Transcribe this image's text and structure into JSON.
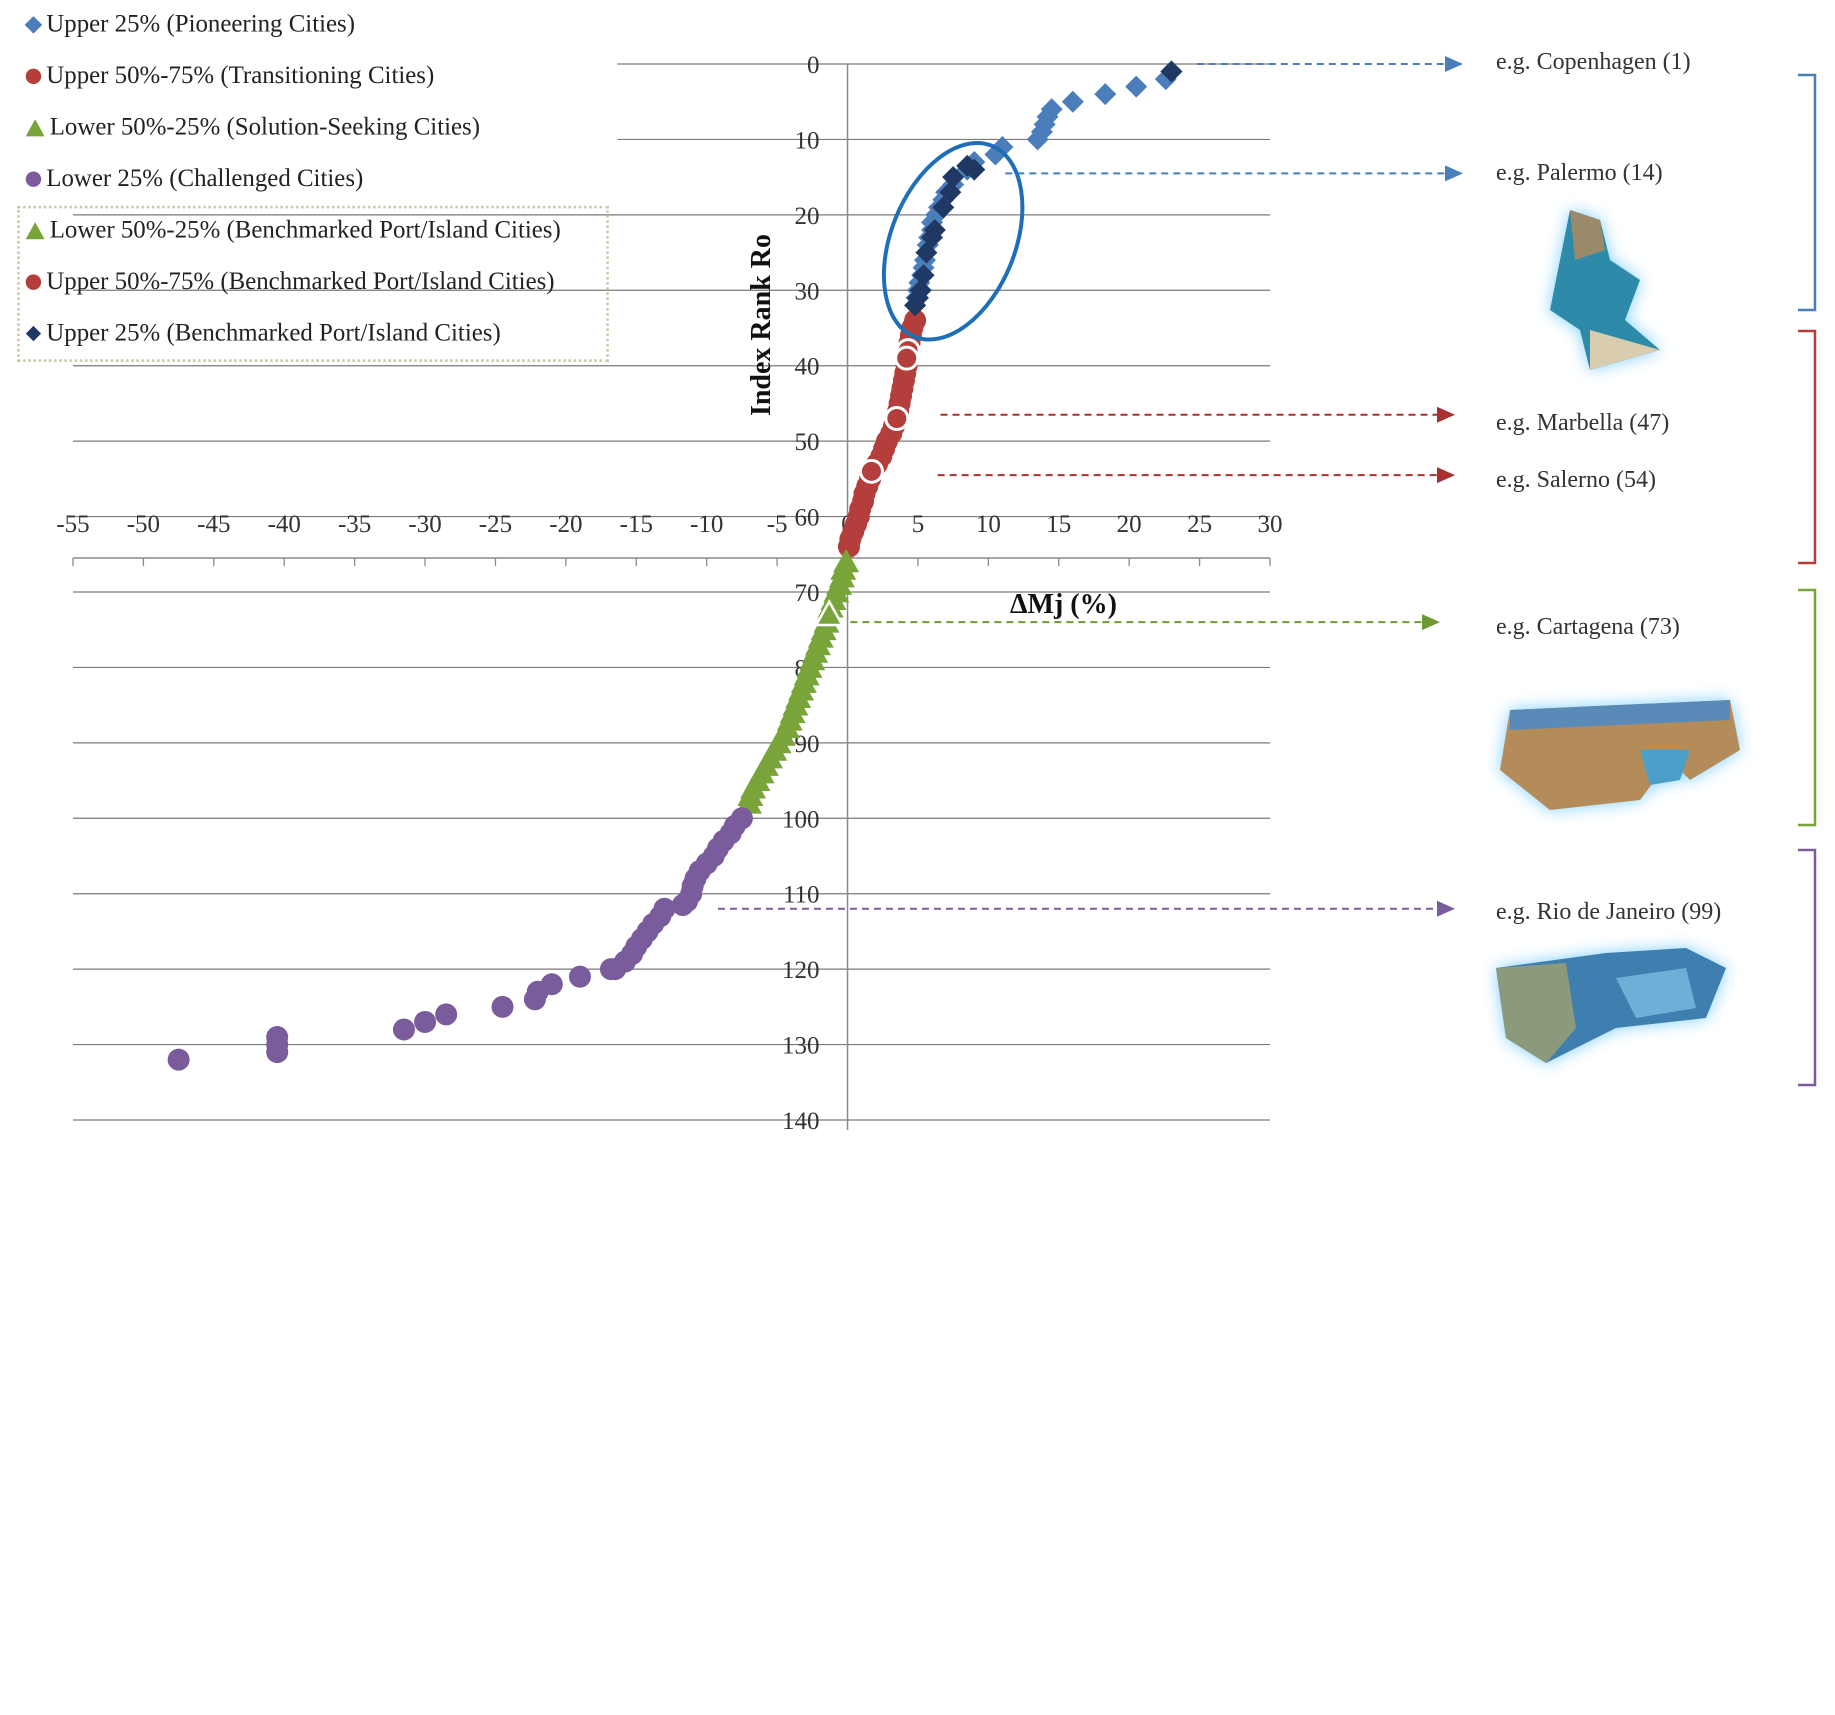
{
  "chart_data": {
    "type": "scatter",
    "xlabel": "ΔMj (%)",
    "ylabel": "Index Rank Ro",
    "xlim": [
      -55,
      30
    ],
    "ylim": [
      0,
      140
    ],
    "y_inverted": true,
    "grid": "horizontal",
    "x_ticks": [
      "-55",
      "-50",
      "-45",
      "-40",
      "-35",
      "-30",
      "-25",
      "-20",
      "-15",
      "-10",
      "-5",
      "0",
      "5",
      "10",
      "15",
      "20",
      "25",
      "30"
    ],
    "y_ticks": [
      "0",
      "10",
      "20",
      "30",
      "40",
      "50",
      "60",
      "70",
      "80",
      "90",
      "100",
      "110",
      "120",
      "130",
      "140"
    ],
    "legend_position": "top-left",
    "series": [
      {
        "name": "Upper 25% (Pioneering Cities)",
        "marker": "diamond",
        "color": "#4a7ebb",
        "points": [
          [
            23,
            1
          ],
          [
            22.6,
            2
          ],
          [
            20.5,
            3
          ],
          [
            18.3,
            4
          ],
          [
            16,
            5
          ],
          [
            14.5,
            6
          ],
          [
            14.2,
            7
          ],
          [
            14,
            8
          ],
          [
            13.8,
            9
          ],
          [
            13.5,
            10
          ],
          [
            11,
            11
          ],
          [
            10.5,
            12
          ],
          [
            9,
            13
          ],
          [
            8.5,
            14
          ],
          [
            7.5,
            16
          ],
          [
            7,
            17
          ],
          [
            6.8,
            18
          ],
          [
            6.5,
            19
          ],
          [
            6.3,
            20
          ],
          [
            6,
            21
          ],
          [
            6,
            22
          ],
          [
            5.8,
            23
          ],
          [
            5.7,
            24
          ],
          [
            5.5,
            26
          ],
          [
            5.4,
            27
          ],
          [
            5.3,
            28
          ],
          [
            5.1,
            29
          ],
          [
            5,
            30
          ],
          [
            4.9,
            31
          ],
          [
            4.8,
            32
          ]
        ]
      },
      {
        "name": "Upper 50%-75% (Transitioning Cities)",
        "marker": "circle",
        "color": "#b33e3c",
        "points": [
          [
            4.8,
            34
          ],
          [
            4.6,
            35
          ],
          [
            4.5,
            36
          ],
          [
            4.4,
            37
          ],
          [
            4.3,
            39
          ],
          [
            4.2,
            40
          ],
          [
            4.1,
            41
          ],
          [
            4.0,
            42
          ],
          [
            3.9,
            43
          ],
          [
            3.8,
            44
          ],
          [
            3.7,
            45
          ],
          [
            3.6,
            46
          ],
          [
            3.5,
            47
          ],
          [
            3.3,
            48
          ],
          [
            3.1,
            49
          ],
          [
            2.8,
            50
          ],
          [
            2.6,
            51
          ],
          [
            2.4,
            52
          ],
          [
            2.1,
            53
          ],
          [
            1.8,
            54
          ],
          [
            1.6,
            55
          ],
          [
            1.4,
            56
          ],
          [
            1.2,
            57
          ],
          [
            1.1,
            58
          ],
          [
            0.9,
            59
          ],
          [
            0.8,
            60
          ],
          [
            0.6,
            61
          ],
          [
            0.4,
            62
          ],
          [
            0.2,
            63
          ],
          [
            0.1,
            64
          ]
        ]
      },
      {
        "name": "Lower 50%-25% (Solution-Seeking Cities)",
        "marker": "triangle",
        "color": "#78a43a",
        "points": [
          [
            -0.1,
            66
          ],
          [
            -0.3,
            67
          ],
          [
            -0.4,
            68
          ],
          [
            -0.6,
            69
          ],
          [
            -0.8,
            70
          ],
          [
            -1,
            71
          ],
          [
            -1.2,
            72
          ],
          [
            -1.3,
            73
          ],
          [
            -1.5,
            74
          ],
          [
            -1.7,
            75
          ],
          [
            -1.9,
            76
          ],
          [
            -2.1,
            77
          ],
          [
            -2.3,
            78
          ],
          [
            -2.5,
            79
          ],
          [
            -2.7,
            80
          ],
          [
            -2.9,
            81
          ],
          [
            -3.1,
            82
          ],
          [
            -3.3,
            83
          ],
          [
            -3.5,
            84
          ],
          [
            -3.7,
            85
          ],
          [
            -3.9,
            86
          ],
          [
            -4.1,
            87
          ],
          [
            -4.3,
            88
          ],
          [
            -4.6,
            89
          ],
          [
            -4.9,
            90
          ],
          [
            -5.2,
            91
          ],
          [
            -5.5,
            92
          ],
          [
            -5.8,
            93
          ],
          [
            -6.1,
            94
          ],
          [
            -6.4,
            95
          ],
          [
            -6.7,
            96
          ],
          [
            -6.9,
            97
          ],
          [
            -7.0,
            98
          ]
        ]
      },
      {
        "name": "Lower 25% (Challenged Cities)",
        "marker": "circle",
        "color": "#7a5c9c",
        "points": [
          [
            -7.5,
            100
          ],
          [
            -8,
            101
          ],
          [
            -8.3,
            102
          ],
          [
            -8.8,
            103
          ],
          [
            -9.2,
            104
          ],
          [
            -9.5,
            105
          ],
          [
            -10,
            106
          ],
          [
            -10.5,
            107
          ],
          [
            -10.8,
            108
          ],
          [
            -11,
            109
          ],
          [
            -11.1,
            110
          ],
          [
            -11.4,
            111
          ],
          [
            -11.7,
            111.5
          ],
          [
            -13,
            112
          ],
          [
            -13.3,
            113
          ],
          [
            -13.8,
            114
          ],
          [
            -14.2,
            115
          ],
          [
            -14.6,
            116
          ],
          [
            -15,
            117
          ],
          [
            -15.3,
            118
          ],
          [
            -15.8,
            119
          ],
          [
            -16.5,
            120
          ],
          [
            -16.8,
            120
          ],
          [
            -19,
            121
          ],
          [
            -21,
            122
          ],
          [
            -22,
            123
          ],
          [
            -22.2,
            124
          ],
          [
            -24.5,
            125
          ],
          [
            -28.5,
            126
          ],
          [
            -30,
            127
          ],
          [
            -31.5,
            128
          ],
          [
            -40.5,
            129
          ],
          [
            -40.5,
            130
          ],
          [
            -40.5,
            131
          ],
          [
            -47.5,
            132
          ]
        ]
      },
      {
        "name": "Lower 50%-25% (Benchmarked Port/Island Cities)",
        "marker": "triangle-open",
        "color": "#78a43a",
        "points": [
          [
            -1.3,
            73
          ]
        ]
      },
      {
        "name": "Upper 50%-75% (Benchmarked Port/Island Cities)",
        "marker": "circle-open",
        "color": "#b33e3c",
        "points": [
          [
            4.3,
            38
          ],
          [
            4.2,
            39
          ],
          [
            3.5,
            47
          ],
          [
            1.7,
            54
          ]
        ]
      },
      {
        "name": "Upper 25% (Benchmarked Port/Island Cities)",
        "marker": "diamond",
        "color": "#203864",
        "points": [
          [
            23,
            1
          ],
          [
            9,
            14
          ],
          [
            8.5,
            13.5
          ],
          [
            7.5,
            15
          ],
          [
            7.3,
            17
          ],
          [
            6.8,
            19
          ],
          [
            6.2,
            22
          ],
          [
            6,
            23
          ],
          [
            5.6,
            25
          ],
          [
            5.4,
            28
          ],
          [
            5.2,
            30
          ],
          [
            5,
            31
          ],
          [
            4.8,
            32
          ]
        ]
      }
    ],
    "annotations": [
      {
        "label": "e.g. Copenhagen (1)",
        "rank": 0,
        "color": "#4a7ebb"
      },
      {
        "label": "e.g. Palermo (14)",
        "rank": 14.5,
        "color": "#4a7ebb"
      },
      {
        "label": "e.g. Marbella  (47)",
        "rank": 46.5,
        "color": "#a6312f"
      },
      {
        "label": "e.g. Salerno  (54)",
        "rank": 54.5,
        "color": "#a6312f"
      },
      {
        "label": "e.g. Cartagena (73)",
        "rank": 74,
        "color": "#6e9a36"
      },
      {
        "label": "e.g. Rio de Janeiro (99)",
        "rank": 112,
        "color": "#7a5c9c"
      }
    ]
  },
  "legend": [
    {
      "label": "Upper 25% (Pioneering Cities)",
      "marker": "diamond-blue"
    },
    {
      "label": "Upper 50%-75% (Transitioning Cities)",
      "marker": "circle-red"
    },
    {
      "label": "Lower 50%-25% (Solution-Seeking Cities)",
      "marker": "tri-green"
    },
    {
      "label": "Lower 25% (Challenged Cities)",
      "marker": "circle-purple"
    },
    {
      "label": "Lower 50%-25% (Benchmarked Port/Island Cities)",
      "marker": "tri-green"
    },
    {
      "label": "Upper 50%-75% (Benchmarked Port/Island Cities)",
      "marker": "circle-red"
    },
    {
      "label": "Upper 25% (Benchmarked Port/Island Cities)",
      "marker": "diamond-navy"
    }
  ],
  "colors": {
    "blue": "#4a7ebb",
    "red": "#b33e3c",
    "green": "#78a43a",
    "purple": "#7a5c9c",
    "navy": "#203864",
    "highlight_ellipse": "#1f6fb8"
  }
}
